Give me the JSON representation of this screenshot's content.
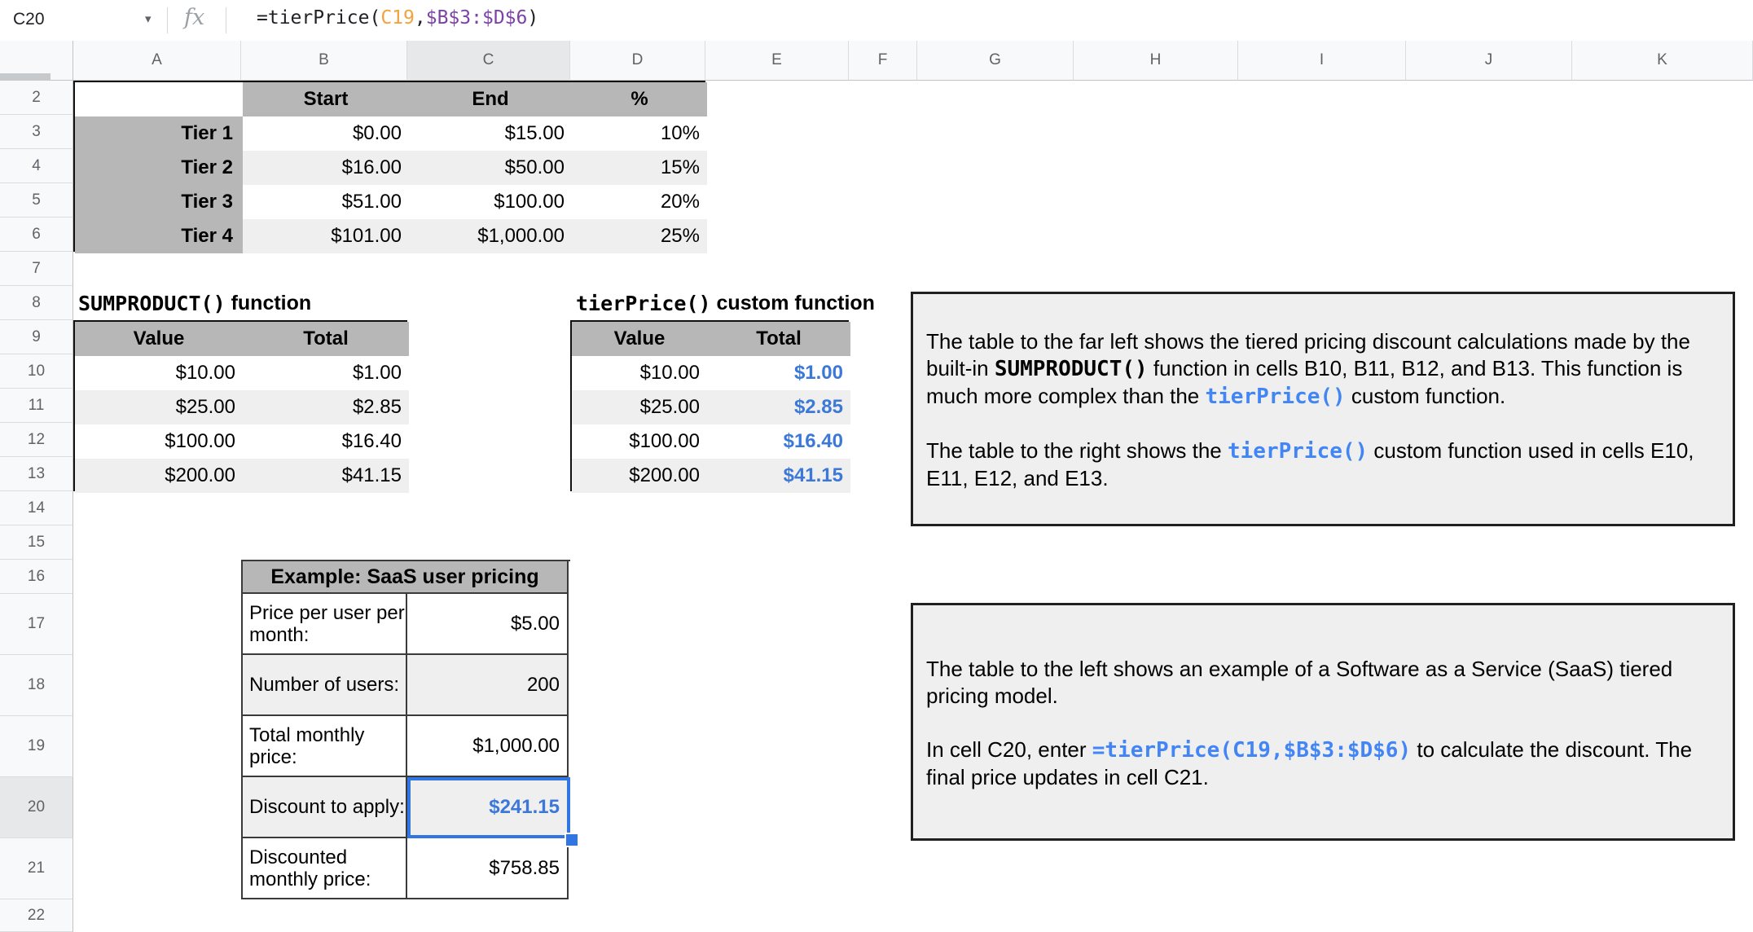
{
  "formula_bar": {
    "cell_reference": "C20",
    "fx_label": "fx",
    "formula_parts": [
      {
        "text": "=tierPrice(",
        "color": "#202124"
      },
      {
        "text": "C19",
        "color": "#f2a33c"
      },
      {
        "text": ",",
        "color": "#202124"
      },
      {
        "text": "$B$3:$D$6",
        "color": "#7d42a8"
      },
      {
        "text": ")",
        "color": "#202124"
      }
    ]
  },
  "column_headers": [
    "A",
    "B",
    "C",
    "D",
    "E",
    "F",
    "G",
    "H",
    "I",
    "J",
    "K"
  ],
  "row_headers": [
    "2",
    "3",
    "4",
    "5",
    "6",
    "7",
    "8",
    "9",
    "10",
    "11",
    "12",
    "13",
    "14",
    "15",
    "16",
    "17",
    "18",
    "19",
    "20",
    "21",
    "22"
  ],
  "selection": {
    "column": "C",
    "row": "20"
  },
  "tier_table": {
    "headers": [
      "Start",
      "End",
      "%"
    ],
    "rows": [
      {
        "label": "Tier 1",
        "start": "$0.00",
        "end": "$15.00",
        "pct": "10%"
      },
      {
        "label": "Tier 2",
        "start": "$16.00",
        "end": "$50.00",
        "pct": "15%"
      },
      {
        "label": "Tier 3",
        "start": "$51.00",
        "end": "$100.00",
        "pct": "20%"
      },
      {
        "label": "Tier 4",
        "start": "$101.00",
        "end": "$1,000.00",
        "pct": "25%"
      }
    ]
  },
  "sumproduct_table": {
    "title_code": "SUMPRODUCT()",
    "title_rest": " function",
    "headers": [
      "Value",
      "Total"
    ],
    "rows": [
      {
        "value": "$10.00",
        "total": "$1.00"
      },
      {
        "value": "$25.00",
        "total": "$2.85"
      },
      {
        "value": "$100.00",
        "total": "$16.40"
      },
      {
        "value": "$200.00",
        "total": "$41.15"
      }
    ]
  },
  "tierprice_table": {
    "title_code": "tierPrice()",
    "title_rest": " custom function",
    "headers": [
      "Value",
      "Total"
    ],
    "rows": [
      {
        "value": "$10.00",
        "total": "$1.00"
      },
      {
        "value": "$25.00",
        "total": "$2.85"
      },
      {
        "value": "$100.00",
        "total": "$16.40"
      },
      {
        "value": "$200.00",
        "total": "$41.15"
      }
    ]
  },
  "example_table": {
    "title": "Example: SaaS user pricing",
    "rows": [
      {
        "label": "Price per user per month:",
        "value": "$5.00",
        "selected": false,
        "blue": false
      },
      {
        "label": "Number of users:",
        "value": "200",
        "selected": false,
        "blue": false
      },
      {
        "label": "Total monthly price:",
        "value": "$1,000.00",
        "selected": false,
        "blue": false
      },
      {
        "label": "Discount to apply:",
        "value": "$241.15",
        "selected": true,
        "blue": true
      },
      {
        "label": "Discounted monthly price:",
        "value": "$758.85",
        "selected": false,
        "blue": false
      }
    ]
  },
  "note_boxes": [
    {
      "paragraphs": [
        [
          {
            "t": "The table to the far left shows the tiered pricing discount calculations made by the built-in "
          },
          {
            "t": "SUMPRODUCT()",
            "s": "code"
          },
          {
            "t": " function in cells B10, B11, B12, and B13. This function is much more complex than the "
          },
          {
            "t": "tierPrice()",
            "s": "codeBlue"
          },
          {
            "t": " custom function."
          }
        ],
        [
          {
            "t": "The table to the right shows the "
          },
          {
            "t": "tierPrice()",
            "s": "codeBlue"
          },
          {
            "t": " custom function used in cells E10, E11, E12, and E13."
          }
        ]
      ]
    },
    {
      "paragraphs": [
        [
          {
            "t": "The table to the left shows an example of a Software as a Service (SaaS) tiered pricing model."
          }
        ],
        [
          {
            "t": "In cell C20, enter "
          },
          {
            "t": "=tierPrice(C19,$B$3:$D$6)",
            "s": "codeBlue"
          },
          {
            "t": " to calculate the discount. The final price updates in cell C21."
          }
        ]
      ]
    }
  ],
  "colors": {
    "selection_blue": "#3276e4",
    "cell_value_blue": "#3b78d8",
    "note_code_blue": "#4285f4",
    "formula_orange": "#f2a33c",
    "formula_purple": "#7d42a8",
    "table_header_gray": "#b7b7b7",
    "alt_row_gray": "#efefef",
    "note_box_gray": "#efefef"
  }
}
